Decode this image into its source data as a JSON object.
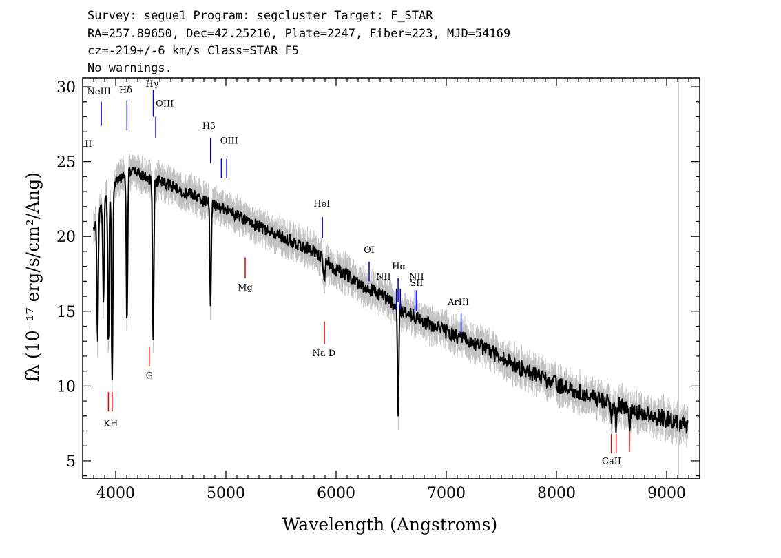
{
  "header": {
    "line1": "Survey: segue1 Program: segcluster Target: F_STAR",
    "line2": "RA=257.89650, Dec=42.25216, Plate=2247, Fiber=223, MJD=54169",
    "line3": "cz=-219+/-6 km/s Class=STAR F5",
    "line4": "No warnings."
  },
  "chart_data": {
    "type": "line",
    "xlabel": "Wavelength (Angstroms)",
    "ylabel": "fλ (10⁻¹⁷ erg/s/cm²/Ang)",
    "xlim": [
      3700,
      9300
    ],
    "ylim": [
      3.8,
      30.6
    ],
    "x_ticks": [
      4000,
      5000,
      6000,
      7000,
      8000,
      9000
    ],
    "y_ticks": [
      5,
      10,
      15,
      20,
      25,
      30
    ],
    "grid": false,
    "continuum": [
      [
        3800,
        20.5
      ],
      [
        3900,
        22.5
      ],
      [
        4000,
        23.6
      ],
      [
        4100,
        24.3
      ],
      [
        4200,
        24.3
      ],
      [
        4300,
        23.8
      ],
      [
        4400,
        23.7
      ],
      [
        4500,
        23.4
      ],
      [
        4600,
        23.0
      ],
      [
        4700,
        22.8
      ],
      [
        4800,
        22.4
      ],
      [
        4900,
        22.0
      ],
      [
        5000,
        21.8
      ],
      [
        5200,
        21.0
      ],
      [
        5400,
        20.3
      ],
      [
        5600,
        19.7
      ],
      [
        5800,
        19.0
      ],
      [
        6000,
        17.8
      ],
      [
        6200,
        16.9
      ],
      [
        6400,
        16.1
      ],
      [
        6600,
        15.1
      ],
      [
        6800,
        14.3
      ],
      [
        7000,
        13.6
      ],
      [
        7200,
        13.0
      ],
      [
        7400,
        12.3
      ],
      [
        7600,
        11.5
      ],
      [
        7800,
        10.8
      ],
      [
        8000,
        10.1
      ],
      [
        8200,
        9.6
      ],
      [
        8400,
        9.1
      ],
      [
        8600,
        8.6
      ],
      [
        8800,
        8.1
      ],
      [
        9000,
        7.8
      ],
      [
        9200,
        7.2
      ]
    ],
    "absorption_features": [
      {
        "x": 3835,
        "depth": 8.0
      },
      {
        "x": 3889,
        "depth": 6.5
      },
      {
        "x": 3934,
        "depth": 10.0
      },
      {
        "x": 3968,
        "depth": 13.0
      },
      {
        "x": 4102,
        "depth": 10.3
      },
      {
        "x": 4340,
        "depth": 11.0
      },
      {
        "x": 4861,
        "depth": 7.0
      },
      {
        "x": 5892,
        "depth": 1.5
      },
      {
        "x": 6563,
        "depth": 7.0
      },
      {
        "x": 8498,
        "depth": 1.2
      },
      {
        "x": 8542,
        "depth": 1.6
      },
      {
        "x": 8662,
        "depth": 1.3
      }
    ],
    "emission_lines": [
      {
        "label": "NeIII",
        "x": 3869,
        "y_top": 29.0,
        "y_bot": 27.4
      },
      {
        "label": "Hδ",
        "x": 4102,
        "y_top": 29.1,
        "y_bot": 27.1
      },
      {
        "label": "Hγ",
        "x": 4341,
        "y_top": 29.8,
        "y_bot": 28.0
      },
      {
        "label": "OIII",
        "x": 4363,
        "y_top": 28.0,
        "y_bot": 26.6
      },
      {
        "label": "Hβ",
        "x": 4861,
        "y_top": 26.6,
        "y_bot": 24.9
      },
      {
        "label": "OIII",
        "x": 4959,
        "y_top": 25.2,
        "y_bot": 23.9
      },
      {
        "label": "OIII",
        "x": 5007,
        "y_top": 25.2,
        "y_bot": 23.9
      },
      {
        "label": "HeI",
        "x": 5876,
        "y_top": 21.3,
        "y_bot": 19.9
      },
      {
        "label": "OI",
        "x": 6300,
        "y_top": 18.3,
        "y_bot": 17.0
      },
      {
        "label": "NII",
        "x": 6548,
        "y_top": 16.5,
        "y_bot": 15.1
      },
      {
        "label": "Hα",
        "x": 6563,
        "y_top": 17.2,
        "y_bot": 15.6
      },
      {
        "label": "NII",
        "x": 6583,
        "y_top": 16.5,
        "y_bot": 15.1
      },
      {
        "label": "SII",
        "x": 6716,
        "y_top": 16.4,
        "y_bot": 15.0
      },
      {
        "label": "SII",
        "x": 6731,
        "y_top": 16.4,
        "y_bot": 15.0
      },
      {
        "label": "ArIII",
        "x": 7135,
        "y_top": 14.9,
        "y_bot": 13.5
      }
    ],
    "absorption_markers": [
      {
        "label": "K",
        "x": 3934,
        "y_top": 9.6,
        "y_bot": 8.3
      },
      {
        "label": "H",
        "x": 3968,
        "y_top": 9.6,
        "y_bot": 8.3
      },
      {
        "label": "G",
        "x": 4305,
        "y_top": 12.6,
        "y_bot": 11.3
      },
      {
        "label": "Mg",
        "x": 5175,
        "y_top": 18.6,
        "y_bot": 17.2
      },
      {
        "label": "Na",
        "x": 5894,
        "y_top": 14.3,
        "y_bot": 12.8
      },
      {
        "label": "CaII",
        "x": 8498,
        "y_top": 6.8,
        "y_bot": 5.5
      },
      {
        "label": "CaII",
        "x": 8542,
        "y_top": 6.8,
        "y_bot": 5.5
      },
      {
        "label": "CaII",
        "x": 8662,
        "y_top": 7.0,
        "y_bot": 5.6
      }
    ],
    "emission_labels": [
      {
        "text": "II",
        "x": 3720,
        "y": 26.0,
        "anchor": "start"
      },
      {
        "text": "NeIII",
        "x": 3848,
        "y": 29.5,
        "anchor": "middle"
      },
      {
        "text": "Hδ",
        "x": 4090,
        "y": 29.6,
        "anchor": "middle"
      },
      {
        "text": "Hγ",
        "x": 4330,
        "y": 30.0,
        "anchor": "middle"
      },
      {
        "text": "OIII",
        "x": 4445,
        "y": 28.7,
        "anchor": "middle"
      },
      {
        "text": "Hβ",
        "x": 4845,
        "y": 27.2,
        "anchor": "middle"
      },
      {
        "text": "OIII",
        "x": 5030,
        "y": 26.2,
        "anchor": "middle"
      },
      {
        "text": "HeI",
        "x": 5870,
        "y": 22.0,
        "anchor": "middle"
      },
      {
        "text": "OI",
        "x": 6300,
        "y": 18.9,
        "anchor": "middle"
      },
      {
        "text": "NII",
        "x": 6430,
        "y": 17.1,
        "anchor": "middle"
      },
      {
        "text": "Hα",
        "x": 6570,
        "y": 17.8,
        "anchor": "middle"
      },
      {
        "text": "NII",
        "x": 6730,
        "y": 17.1,
        "anchor": "middle"
      },
      {
        "text": "SII",
        "x": 6730,
        "y": 16.7,
        "anchor": "middle"
      },
      {
        "text": "ArIII",
        "x": 7110,
        "y": 15.4,
        "anchor": "middle"
      }
    ],
    "absorption_labels": [
      {
        "text": "KH",
        "x": 3955,
        "y": 7.3,
        "anchor": "middle"
      },
      {
        "text": "G",
        "x": 4305,
        "y": 10.5,
        "anchor": "middle"
      },
      {
        "text": "Mg",
        "x": 5175,
        "y": 16.4,
        "anchor": "middle"
      },
      {
        "text": "Na  D",
        "x": 5890,
        "y": 12.0,
        "anchor": "middle"
      },
      {
        "text": "CaII",
        "x": 8500,
        "y": 4.8,
        "anchor": "middle"
      }
    ],
    "sky_line": {
      "x": 9110,
      "y_top": 30.6,
      "y_bot": 3.8
    },
    "colors": {
      "flux": "#000000",
      "error_band": "#c0c0c0",
      "emission_marker": "#0000cc",
      "absorption_marker": "#ee0000",
      "sky_line": "#cccccc",
      "axes": "#000000"
    }
  }
}
